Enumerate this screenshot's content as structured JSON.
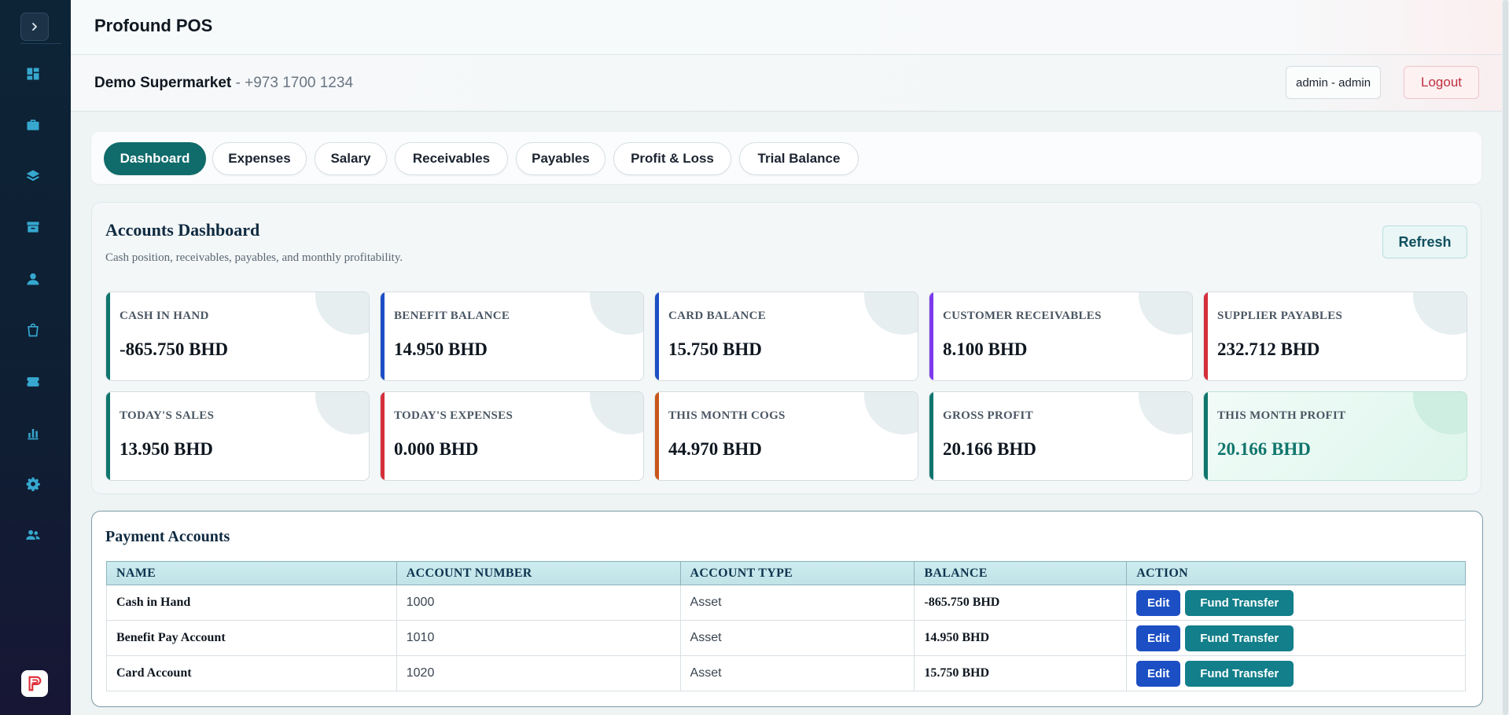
{
  "app": {
    "title": "Profound POS"
  },
  "store": {
    "name": "Demo Supermarket",
    "phone": " - +973 1700 1234"
  },
  "user": {
    "label": "admin - admin",
    "logout_label": "Logout"
  },
  "sidebar": {
    "items": [
      {
        "icon": "dashboard-icon"
      },
      {
        "icon": "briefcase-icon"
      },
      {
        "icon": "layers-icon"
      },
      {
        "icon": "inbox-icon"
      },
      {
        "icon": "user-icon"
      },
      {
        "icon": "shopping-bag-icon"
      },
      {
        "icon": "ticket-icon"
      },
      {
        "icon": "bar-chart-icon"
      },
      {
        "icon": "settings-icon"
      },
      {
        "icon": "users-icon"
      }
    ]
  },
  "tabs": [
    {
      "label": "Dashboard",
      "active": true
    },
    {
      "label": "Expenses"
    },
    {
      "label": "Salary"
    },
    {
      "label": "Receivables"
    },
    {
      "label": "Payables"
    },
    {
      "label": "Profit & Loss"
    },
    {
      "label": "Trial Balance"
    }
  ],
  "dashboard": {
    "title": "Accounts Dashboard",
    "subtitle": "Cash position, receivables, payables, and monthly profitability.",
    "refresh_label": "Refresh",
    "cards": [
      {
        "label": "CASH IN HAND",
        "value": "-865.750 BHD",
        "accent": "#10766d"
      },
      {
        "label": "BENEFIT BALANCE",
        "value": "14.950 BHD",
        "accent": "#1d4fc4"
      },
      {
        "label": "CARD BALANCE",
        "value": "15.750 BHD",
        "accent": "#1d4fc4"
      },
      {
        "label": "CUSTOMER RECEIVABLES",
        "value": "8.100 BHD",
        "accent": "#7c3aed"
      },
      {
        "label": "SUPPLIER PAYABLES",
        "value": "232.712 BHD",
        "accent": "#d42f3a"
      },
      {
        "label": "TODAY'S SALES",
        "value": "13.950 BHD",
        "accent": "#10766d"
      },
      {
        "label": "TODAY'S EXPENSES",
        "value": "0.000 BHD",
        "accent": "#d42f3a"
      },
      {
        "label": "THIS MONTH COGS",
        "value": "44.970 BHD",
        "accent": "#c8561a"
      },
      {
        "label": "GROSS PROFIT",
        "value": "20.166 BHD",
        "accent": "#10766d"
      },
      {
        "label": "THIS MONTH PROFIT",
        "value": "20.166 BHD",
        "accent": "#10766d"
      }
    ]
  },
  "accounts": {
    "title": "Payment Accounts",
    "columns": [
      "NAME",
      "ACCOUNT NUMBER",
      "ACCOUNT TYPE",
      "BALANCE",
      "ACTION"
    ],
    "edit_label": "Edit",
    "transfer_label": "Fund Transfer",
    "rows": [
      {
        "name": "Cash in Hand",
        "number": "1000",
        "type": "Asset",
        "balance": "-865.750 BHD"
      },
      {
        "name": "Benefit Pay Account",
        "number": "1010",
        "type": "Asset",
        "balance": "14.950 BHD"
      },
      {
        "name": "Card Account",
        "number": "1020",
        "type": "Asset",
        "balance": "15.750 BHD"
      }
    ]
  }
}
